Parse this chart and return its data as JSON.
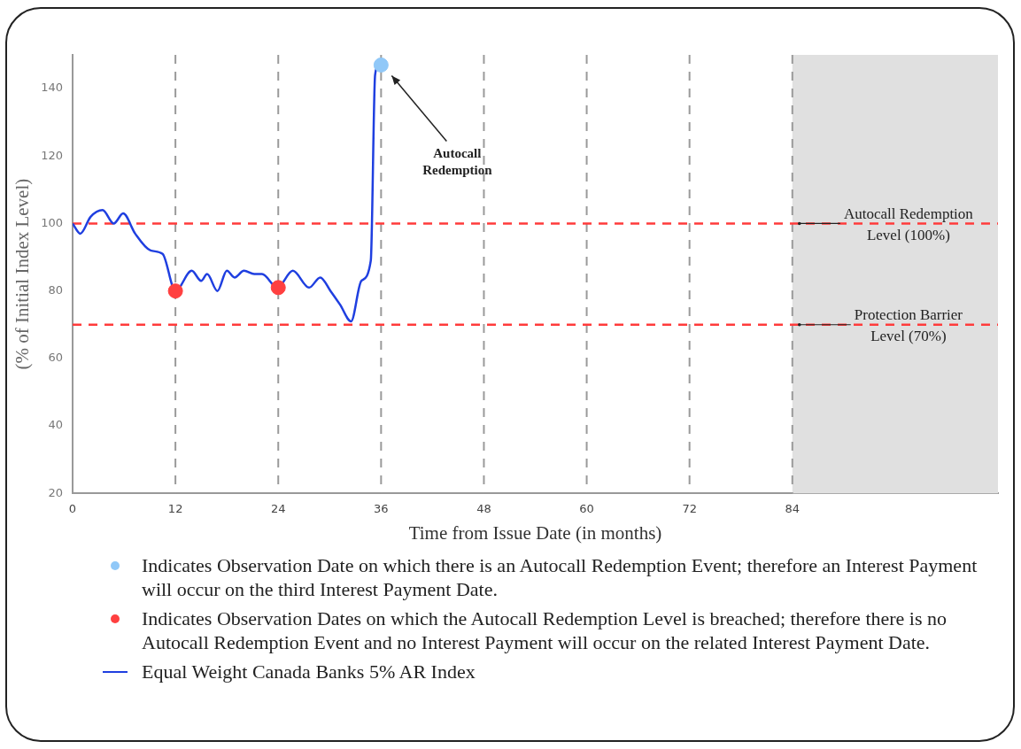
{
  "chart_data": {
    "type": "line",
    "xlabel": "Time from Issue Date (in months)",
    "ylabel": "(% of Initial Index Level)",
    "xlim": [
      0,
      108
    ],
    "xticks": [
      0,
      12,
      24,
      36,
      48,
      60,
      72,
      84
    ],
    "ylim": [
      20,
      150
    ],
    "yticks": [
      20,
      40,
      60,
      80,
      100,
      120,
      140
    ],
    "grid": "x",
    "legend": "bottom",
    "series": [
      {
        "name": "Indicates Observation Date on which there is an Autocall Redemption Event; therefore an Interest Payment will occur on the third Interest Payment Date.",
        "type": "scatter",
        "marker": "circle",
        "color": "#90c8f8",
        "x": [
          36
        ],
        "values": [
          147
        ]
      },
      {
        "name": "Indicates Observation Dates on which the Autocall Redemption Level is breached; therefore there is no Autocall Redemption Event and no Interest Payment will occur on the related Interest Payment Date.",
        "type": "scatter",
        "marker": "circle",
        "color": "#ff4040",
        "x": [
          12,
          24
        ],
        "values": [
          80,
          81
        ]
      },
      {
        "name": "Equal Weight Canada Banks 5% AR Index",
        "marker": "none",
        "line_style": "solid",
        "color": "#1f3fe0",
        "x": [
          0,
          0.9,
          2.1,
          3.5,
          4.8,
          5.9,
          7.3,
          9.1,
          10.5,
          12,
          13.9,
          15,
          15.7,
          16.9,
          18,
          18.9,
          20,
          21.2,
          22.1,
          23.9,
          25.7,
          27.6,
          28.9,
          30.1,
          31.2,
          32.5,
          33.7,
          34.8,
          35.3,
          35.7
        ],
        "values": [
          100,
          97,
          102,
          104,
          100,
          103,
          97,
          92,
          91,
          80,
          86,
          83,
          85,
          80,
          86,
          84,
          86,
          85,
          85,
          81,
          86,
          81,
          84,
          80,
          76,
          71,
          83,
          89,
          144,
          147
        ]
      }
    ],
    "ref_lines": [
      {
        "axis": "y",
        "value": 100,
        "label": "Autocall Redemption Level (100%)",
        "color": "#ff3b3b",
        "line_style": "dashed"
      },
      {
        "axis": "y",
        "value": 70,
        "label": "Protection Barrier Level (70%)",
        "color": "#ff3b3b",
        "line_style": "dashed"
      }
    ],
    "bands": [
      {
        "axis": "x",
        "from": 84,
        "to": 108,
        "color": "#e0e0e0"
      }
    ],
    "annotations": [
      "Autocall Redemption"
    ]
  }
}
